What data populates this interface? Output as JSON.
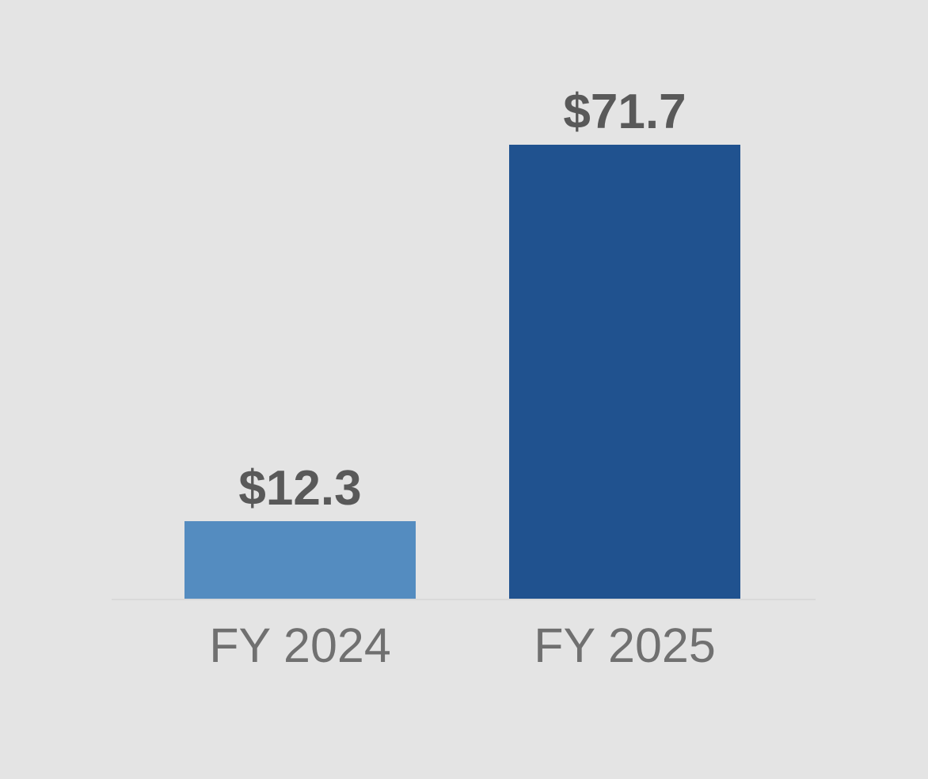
{
  "chart_data": {
    "type": "bar",
    "categories": [
      "FY 2024",
      "FY 2025"
    ],
    "values": [
      12.3,
      71.7
    ],
    "value_labels": [
      "$12.3",
      "$71.7"
    ],
    "series_unit": "$ (billions implied by labels, unit not shown)",
    "title": "",
    "xlabel": "",
    "ylabel": "",
    "ylim": [
      0,
      75
    ],
    "grid": false,
    "legend": false,
    "bar_colors": [
      "#548CC0",
      "#20528F"
    ],
    "background_color": "#e4e4e4",
    "baseline_color": "#d9d9d9",
    "value_label_color": "#595959",
    "axis_label_color": "#707070"
  }
}
